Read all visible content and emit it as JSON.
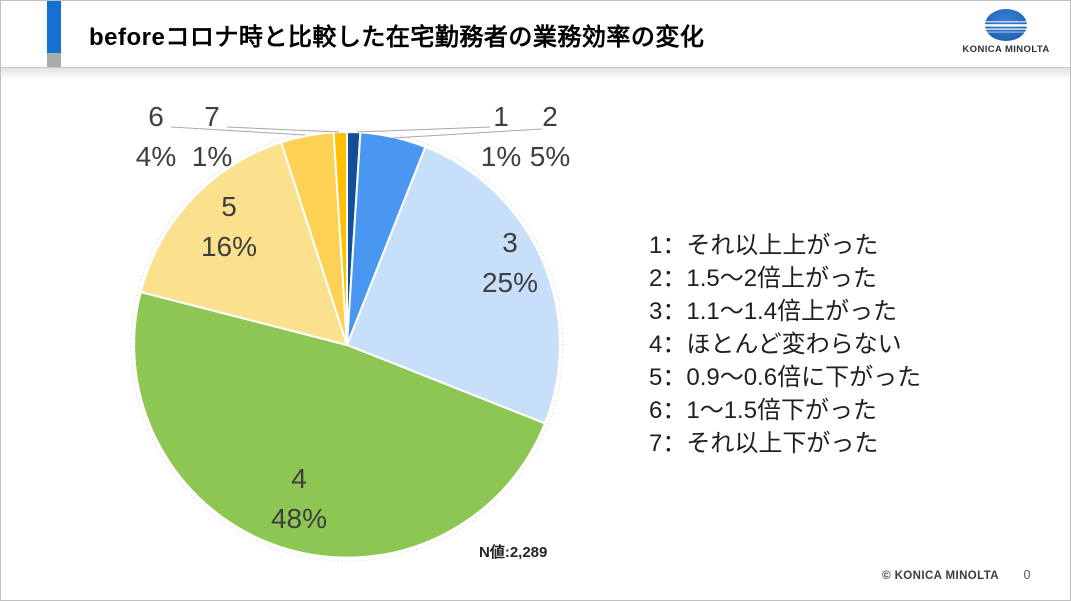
{
  "header": {
    "title": "beforeコロナ時と比較した在宅勤務者の業務効率の変化",
    "brand": "KONICA MINOLTA"
  },
  "chart_data": {
    "type": "pie",
    "title": "beforeコロナ時と比較した在宅勤務者の業務効率の変化",
    "categories": [
      "それ以上上がった",
      "1.5〜2倍上がった",
      "1.1〜1.4倍上がった",
      "ほとんど変わらない",
      "0.9〜0.6倍に下がった",
      "1〜1.5倍下がった",
      "それ以上下がった"
    ],
    "values": [
      1,
      5,
      25,
      48,
      16,
      4,
      1
    ],
    "unit": "percent",
    "colors": [
      "#134f98",
      "#4a97f1",
      "#c7dff8",
      "#8dc653",
      "#fbe18e",
      "#fcd154",
      "#ffc003"
    ],
    "start_angle_deg": 0,
    "direction": "clockwise",
    "legend_position": "right",
    "n_label": "N値:2,289",
    "slice_labels": [
      {
        "num": "1",
        "pct": "1%"
      },
      {
        "num": "2",
        "pct": "5%"
      },
      {
        "num": "3",
        "pct": "25%"
      },
      {
        "num": "4",
        "pct": "48%"
      },
      {
        "num": "5",
        "pct": "16%"
      },
      {
        "num": "6",
        "pct": "4%"
      },
      {
        "num": "7",
        "pct": "1%"
      }
    ]
  },
  "legend": {
    "items": [
      {
        "label": "1：それ以上上がった"
      },
      {
        "label": "2：1.5〜2倍上がった"
      },
      {
        "label": "3：1.1〜1.4倍上がった"
      },
      {
        "label": "4：ほとんど変わらない"
      },
      {
        "label": "5：0.9〜0.6倍に下がった"
      },
      {
        "label": "6：1〜1.5倍下がった"
      },
      {
        "label": "7：それ以上下がった"
      }
    ]
  },
  "footer": {
    "copyright": "© KONICA MINOLTA",
    "page_number": "0"
  },
  "style": {
    "accent_blue": "#1272d4",
    "accent_gray": "#ababab",
    "logo_blue": "#2368b8"
  }
}
